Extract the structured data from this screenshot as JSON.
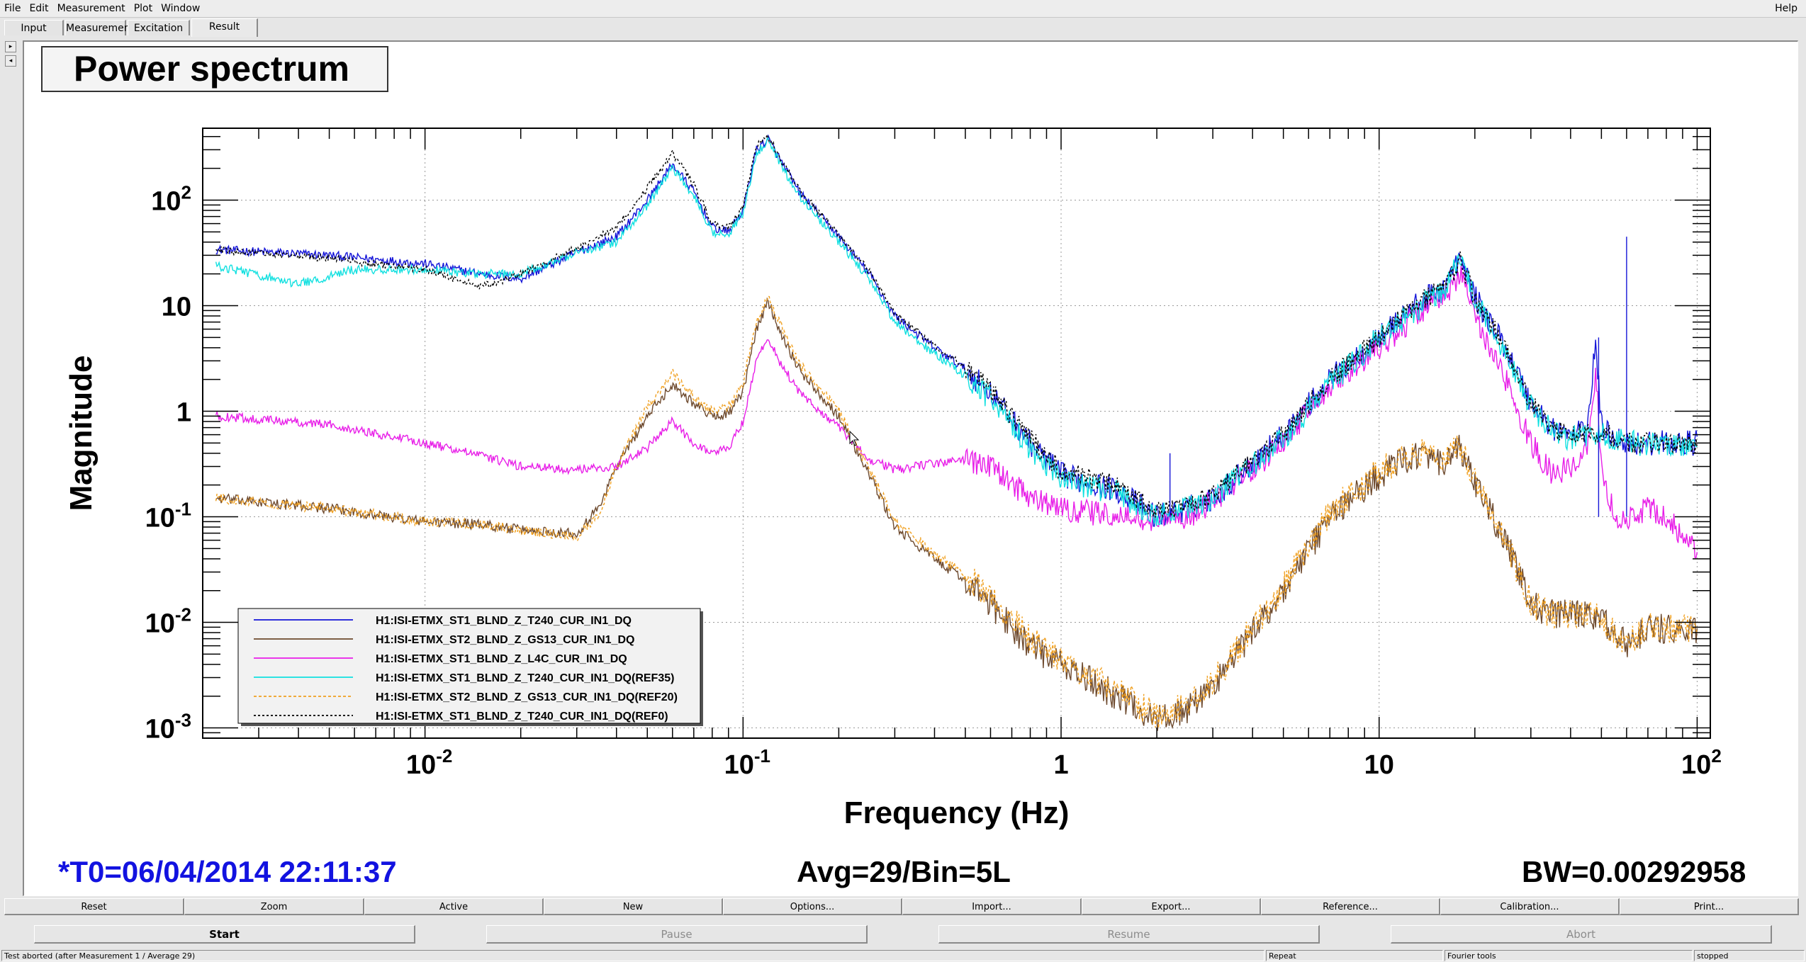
{
  "menu": {
    "items": [
      "File",
      "Edit",
      "Measurement",
      "Plot",
      "Window"
    ],
    "help": "Help"
  },
  "tabs": [
    {
      "label": "Input",
      "active": false
    },
    {
      "label": "Measurement",
      "active": false
    },
    {
      "label": "Excitation",
      "active": false
    },
    {
      "label": "Result",
      "active": true
    }
  ],
  "side_arrows": [
    "right-arrow-icon",
    "left-arrow-icon"
  ],
  "plot": {
    "title": "Power spectrum",
    "t0": "*T0=06/04/2014 22:11:37",
    "avg": "Avg=29/Bin=5L",
    "bw": "BW=0.00292958"
  },
  "chart_data": {
    "type": "line",
    "title": "Power spectrum",
    "xlabel": "Frequency (Hz)",
    "ylabel": "Magnitude",
    "xscale": "log",
    "yscale": "log",
    "xlim": [
      0.002,
      110
    ],
    "ylim": [
      0.0008,
      480
    ],
    "grid": true,
    "legend_position": "bottom-left",
    "x_ticks": [
      {
        "value": 0.01,
        "base": "10",
        "exp": "-2"
      },
      {
        "value": 0.1,
        "base": "10",
        "exp": "-1"
      },
      {
        "value": 1,
        "base": "1",
        "exp": ""
      },
      {
        "value": 10,
        "base": "10",
        "exp": ""
      },
      {
        "value": 100,
        "base": "10",
        "exp": "2"
      }
    ],
    "y_ticks": [
      {
        "value": 100,
        "base": "10",
        "exp": "2"
      },
      {
        "value": 10,
        "base": "10",
        "exp": ""
      },
      {
        "value": 1,
        "base": "1",
        "exp": ""
      },
      {
        "value": 0.1,
        "base": "10",
        "exp": "-1"
      },
      {
        "value": 0.01,
        "base": "10",
        "exp": "-2"
      },
      {
        "value": 0.001,
        "base": "10",
        "exp": "-3"
      }
    ],
    "series": [
      {
        "name": "H1:ISI-ETMX_ST1_BLND_Z_T240_CUR_IN1_DQ",
        "color": "#1515d8",
        "dash": "",
        "noise": 0.12,
        "points": [
          [
            0.0022,
            34
          ],
          [
            0.005,
            30
          ],
          [
            0.01,
            25
          ],
          [
            0.015,
            20
          ],
          [
            0.02,
            18
          ],
          [
            0.03,
            32
          ],
          [
            0.04,
            45
          ],
          [
            0.05,
            100
          ],
          [
            0.06,
            220
          ],
          [
            0.07,
            120
          ],
          [
            0.08,
            55
          ],
          [
            0.09,
            50
          ],
          [
            0.1,
            80
          ],
          [
            0.11,
            300
          ],
          [
            0.12,
            380
          ],
          [
            0.13,
            250
          ],
          [
            0.15,
            120
          ],
          [
            0.2,
            45
          ],
          [
            0.25,
            20
          ],
          [
            0.3,
            8
          ],
          [
            0.4,
            4
          ],
          [
            0.5,
            2.5
          ],
          [
            0.6,
            1.5
          ],
          [
            0.8,
            0.5
          ],
          [
            1,
            0.25
          ],
          [
            1.5,
            0.18
          ],
          [
            2,
            0.1
          ],
          [
            2.5,
            0.12
          ],
          [
            3,
            0.15
          ],
          [
            5,
            0.6
          ],
          [
            7,
            2
          ],
          [
            10,
            5
          ],
          [
            13,
            10
          ],
          [
            16,
            15
          ],
          [
            18,
            28
          ],
          [
            20,
            12
          ],
          [
            25,
            4
          ],
          [
            30,
            1.2
          ],
          [
            35,
            0.7
          ],
          [
            40,
            0.6
          ],
          [
            45,
            0.65
          ],
          [
            48,
            4.5
          ],
          [
            50,
            0.7
          ],
          [
            60,
            0.5
          ],
          [
            80,
            0.5
          ],
          [
            100,
            0.5
          ]
        ]
      },
      {
        "name": "H1:ISI-ETMX_ST2_BLND_Z_GS13_CUR_IN1_DQ",
        "color": "#6e4a2e",
        "dash": "",
        "noise": 0.14,
        "points": [
          [
            0.0022,
            0.15
          ],
          [
            0.005,
            0.12
          ],
          [
            0.01,
            0.09
          ],
          [
            0.015,
            0.085
          ],
          [
            0.02,
            0.075
          ],
          [
            0.03,
            0.07
          ],
          [
            0.035,
            0.12
          ],
          [
            0.04,
            0.3
          ],
          [
            0.05,
            0.9
          ],
          [
            0.06,
            1.8
          ],
          [
            0.07,
            1.2
          ],
          [
            0.08,
            0.9
          ],
          [
            0.09,
            0.95
          ],
          [
            0.1,
            1.5
          ],
          [
            0.11,
            6
          ],
          [
            0.12,
            11
          ],
          [
            0.13,
            6
          ],
          [
            0.15,
            2.5
          ],
          [
            0.2,
            0.9
          ],
          [
            0.25,
            0.25
          ],
          [
            0.3,
            0.08
          ],
          [
            0.4,
            0.04
          ],
          [
            0.5,
            0.025
          ],
          [
            0.6,
            0.015
          ],
          [
            0.8,
            0.006
          ],
          [
            1,
            0.004
          ],
          [
            1.5,
            0.002
          ],
          [
            2,
            0.0012
          ],
          [
            2.5,
            0.0015
          ],
          [
            3,
            0.0025
          ],
          [
            5,
            0.02
          ],
          [
            7,
            0.1
          ],
          [
            10,
            0.25
          ],
          [
            13,
            0.4
          ],
          [
            16,
            0.3
          ],
          [
            18,
            0.45
          ],
          [
            20,
            0.2
          ],
          [
            25,
            0.06
          ],
          [
            30,
            0.015
          ],
          [
            35,
            0.012
          ],
          [
            40,
            0.012
          ],
          [
            50,
            0.011
          ],
          [
            60,
            0.006
          ],
          [
            70,
            0.009
          ],
          [
            100,
            0.008
          ]
        ]
      },
      {
        "name": "H1:ISI-ETMX_ST1_BLND_Z_L4C_CUR_IN1_DQ",
        "color": "#e81ee8",
        "dash": "",
        "noise": 0.12,
        "points": [
          [
            0.0022,
            0.9
          ],
          [
            0.005,
            0.75
          ],
          [
            0.01,
            0.5
          ],
          [
            0.015,
            0.38
          ],
          [
            0.02,
            0.3
          ],
          [
            0.03,
            0.28
          ],
          [
            0.04,
            0.3
          ],
          [
            0.05,
            0.45
          ],
          [
            0.06,
            0.8
          ],
          [
            0.07,
            0.5
          ],
          [
            0.08,
            0.4
          ],
          [
            0.09,
            0.45
          ],
          [
            0.1,
            0.8
          ],
          [
            0.11,
            3
          ],
          [
            0.12,
            5
          ],
          [
            0.13,
            3
          ],
          [
            0.15,
            1.5
          ],
          [
            0.2,
            0.7
          ],
          [
            0.25,
            0.35
          ],
          [
            0.3,
            0.28
          ],
          [
            0.4,
            0.32
          ],
          [
            0.5,
            0.35
          ],
          [
            0.6,
            0.3
          ],
          [
            0.8,
            0.15
          ],
          [
            1,
            0.12
          ],
          [
            1.5,
            0.1
          ],
          [
            2,
            0.09
          ],
          [
            2.5,
            0.1
          ],
          [
            3,
            0.14
          ],
          [
            5,
            0.5
          ],
          [
            7,
            1.8
          ],
          [
            10,
            4
          ],
          [
            13,
            8
          ],
          [
            16,
            12
          ],
          [
            18,
            20
          ],
          [
            20,
            8
          ],
          [
            25,
            2
          ],
          [
            30,
            0.5
          ],
          [
            35,
            0.25
          ],
          [
            40,
            0.3
          ],
          [
            45,
            0.4
          ],
          [
            48,
            2.5
          ],
          [
            50,
            0.3
          ],
          [
            55,
            0.1
          ],
          [
            60,
            0.09
          ],
          [
            70,
            0.12
          ],
          [
            80,
            0.1
          ],
          [
            100,
            0.045
          ]
        ]
      },
      {
        "name": "H1:ISI-ETMX_ST1_BLND_Z_T240_CUR_IN1_DQ(REF35)",
        "color": "#11e0e0",
        "dash": "",
        "noise": 0.12,
        "points": [
          [
            0.0022,
            24
          ],
          [
            0.004,
            16
          ],
          [
            0.006,
            22
          ],
          [
            0.01,
            22
          ],
          [
            0.015,
            20
          ],
          [
            0.02,
            20
          ],
          [
            0.03,
            32
          ],
          [
            0.04,
            40
          ],
          [
            0.05,
            90
          ],
          [
            0.06,
            200
          ],
          [
            0.07,
            110
          ],
          [
            0.08,
            50
          ],
          [
            0.09,
            48
          ],
          [
            0.1,
            75
          ],
          [
            0.11,
            280
          ],
          [
            0.12,
            360
          ],
          [
            0.13,
            230
          ],
          [
            0.15,
            110
          ],
          [
            0.2,
            40
          ],
          [
            0.25,
            18
          ],
          [
            0.3,
            7
          ],
          [
            0.4,
            3.5
          ],
          [
            0.5,
            2.2
          ],
          [
            0.6,
            1.3
          ],
          [
            0.8,
            0.45
          ],
          [
            1,
            0.22
          ],
          [
            1.5,
            0.17
          ],
          [
            2,
            0.1
          ],
          [
            2.5,
            0.12
          ],
          [
            3,
            0.15
          ],
          [
            5,
            0.55
          ],
          [
            7,
            1.8
          ],
          [
            10,
            5
          ],
          [
            13,
            9
          ],
          [
            16,
            14
          ],
          [
            18,
            30
          ],
          [
            20,
            11
          ],
          [
            25,
            3.5
          ],
          [
            30,
            1.1
          ],
          [
            35,
            0.65
          ],
          [
            40,
            0.55
          ],
          [
            45,
            0.6
          ],
          [
            50,
            0.6
          ],
          [
            60,
            0.5
          ],
          [
            100,
            0.48
          ]
        ]
      },
      {
        "name": "H1:ISI-ETMX_ST2_BLND_Z_GS13_CUR_IN1_DQ(REF20)",
        "color": "#f0a020",
        "dash": "4,3",
        "noise": 0.14,
        "points": [
          [
            0.0022,
            0.15
          ],
          [
            0.005,
            0.12
          ],
          [
            0.01,
            0.09
          ],
          [
            0.015,
            0.085
          ],
          [
            0.02,
            0.075
          ],
          [
            0.03,
            0.065
          ],
          [
            0.035,
            0.1
          ],
          [
            0.04,
            0.3
          ],
          [
            0.05,
            1.1
          ],
          [
            0.06,
            2.3
          ],
          [
            0.07,
            1.4
          ],
          [
            0.08,
            1
          ],
          [
            0.09,
            1.1
          ],
          [
            0.1,
            1.8
          ],
          [
            0.11,
            7
          ],
          [
            0.12,
            12
          ],
          [
            0.13,
            7
          ],
          [
            0.15,
            2.8
          ],
          [
            0.2,
            1
          ],
          [
            0.25,
            0.28
          ],
          [
            0.3,
            0.09
          ],
          [
            0.4,
            0.045
          ],
          [
            0.5,
            0.028
          ],
          [
            0.6,
            0.017
          ],
          [
            0.8,
            0.007
          ],
          [
            1,
            0.0045
          ],
          [
            1.5,
            0.0022
          ],
          [
            2,
            0.0013
          ],
          [
            2.5,
            0.0016
          ],
          [
            3,
            0.0027
          ],
          [
            5,
            0.022
          ],
          [
            7,
            0.11
          ],
          [
            10,
            0.27
          ],
          [
            13,
            0.42
          ],
          [
            16,
            0.32
          ],
          [
            18,
            0.5
          ],
          [
            20,
            0.22
          ],
          [
            25,
            0.06
          ],
          [
            30,
            0.015
          ],
          [
            35,
            0.012
          ],
          [
            40,
            0.012
          ],
          [
            50,
            0.011
          ],
          [
            60,
            0.006
          ],
          [
            70,
            0.009
          ],
          [
            100,
            0.0085
          ]
        ]
      },
      {
        "name": "H1:ISI-ETMX_ST1_BLND_Z_T240_CUR_IN1_DQ(REF0)",
        "color": "#000000",
        "dash": "3,3",
        "noise": 0.1,
        "points": [
          [
            0.0022,
            34
          ],
          [
            0.005,
            28
          ],
          [
            0.01,
            22
          ],
          [
            0.015,
            15
          ],
          [
            0.02,
            20
          ],
          [
            0.03,
            35
          ],
          [
            0.04,
            55
          ],
          [
            0.05,
            130
          ],
          [
            0.06,
            280
          ],
          [
            0.07,
            140
          ],
          [
            0.08,
            60
          ],
          [
            0.09,
            55
          ],
          [
            0.1,
            85
          ],
          [
            0.11,
            320
          ],
          [
            0.12,
            400
          ],
          [
            0.13,
            260
          ],
          [
            0.15,
            125
          ],
          [
            0.2,
            48
          ],
          [
            0.25,
            21
          ],
          [
            0.3,
            8.5
          ],
          [
            0.4,
            4.2
          ],
          [
            0.5,
            2.6
          ],
          [
            0.6,
            1.6
          ],
          [
            0.8,
            0.55
          ],
          [
            1,
            0.27
          ],
          [
            1.5,
            0.2
          ],
          [
            2,
            0.11
          ],
          [
            2.5,
            0.13
          ],
          [
            3,
            0.16
          ],
          [
            5,
            0.6
          ],
          [
            7,
            2
          ],
          [
            10,
            5
          ],
          [
            13,
            10
          ],
          [
            16,
            15
          ],
          [
            18,
            27
          ],
          [
            20,
            12
          ],
          [
            25,
            4
          ],
          [
            30,
            1.2
          ],
          [
            35,
            0.7
          ],
          [
            40,
            0.6
          ],
          [
            50,
            0.65
          ],
          [
            60,
            0.5
          ],
          [
            100,
            0.5
          ]
        ]
      }
    ]
  },
  "buttons_row1": [
    "Reset",
    "Zoom",
    "Active",
    "New",
    "Options...",
    "Import...",
    "Export...",
    "Reference...",
    "Calibration...",
    "Print..."
  ],
  "buttons_row2": [
    {
      "label": "Start",
      "enabled": true
    },
    {
      "label": "Pause",
      "enabled": false
    },
    {
      "label": "Resume",
      "enabled": false
    },
    {
      "label": "Abort",
      "enabled": false
    }
  ],
  "status": {
    "message": "Test aborted (after Measurement 1 / Average 29)",
    "mode": "Repeat",
    "tool": "Fourier tools",
    "state": "stopped"
  }
}
